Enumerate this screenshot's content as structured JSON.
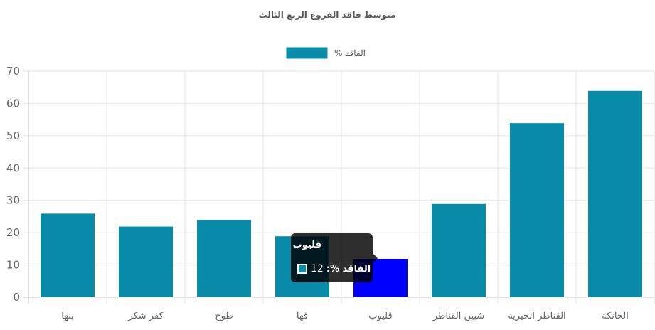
{
  "chart_data": {
    "type": "bar",
    "title": "متوسط فاقد الفروع الربع الثالث",
    "categories": [
      "بنها",
      "كفر شكر",
      "طوخ",
      "قها",
      "قليوب",
      "شبين القناطر",
      "القناطر الخيرية",
      "الخانكة"
    ],
    "series": [
      {
        "name": "الفاقد %",
        "values": [
          26,
          22,
          24,
          19,
          12,
          29,
          54,
          64
        ],
        "color": "#078ba9"
      }
    ],
    "highlight": {
      "index": 4,
      "color": "#0000ff"
    },
    "ylim": [
      0,
      70
    ],
    "yticks": [
      0,
      10,
      20,
      30,
      40,
      50,
      60,
      70
    ],
    "grid": true,
    "legend": "top-center",
    "tooltip": {
      "title": "قليوب",
      "series_label": "الفاقد %:",
      "value": "12"
    }
  }
}
